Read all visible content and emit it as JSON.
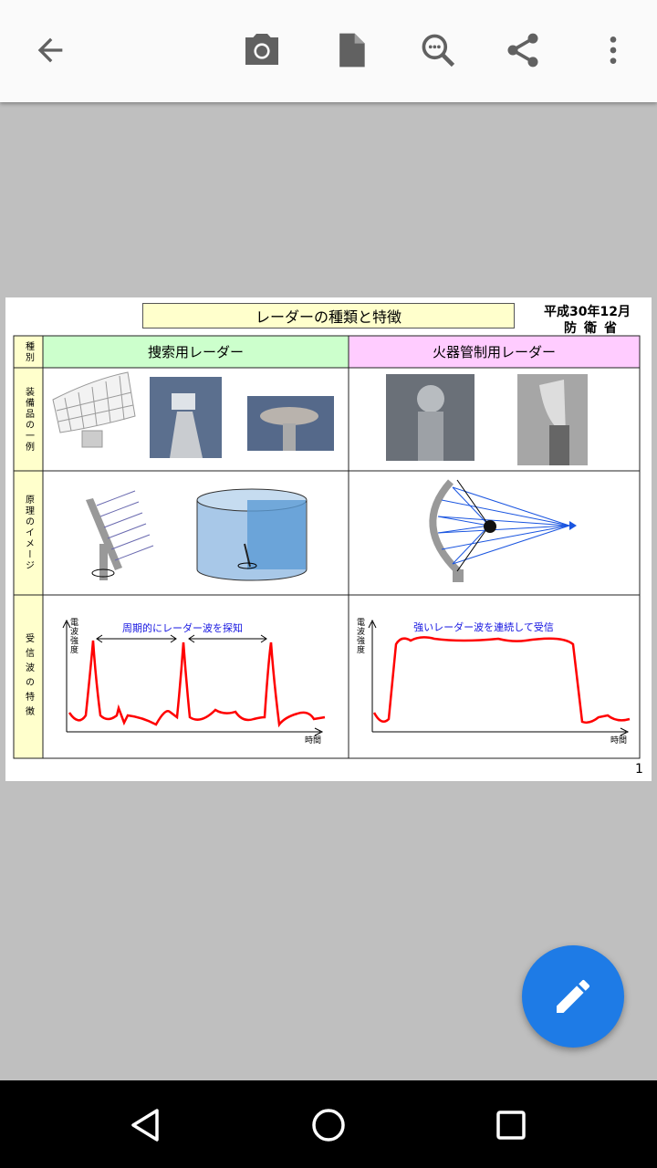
{
  "toolbar": {
    "icons": [
      "back-arrow-icon",
      "camera-icon",
      "document-icon",
      "zoom-icon",
      "share-icon",
      "more-vert-icon"
    ]
  },
  "document": {
    "title": "レーダーの種類と特徴",
    "date": "平成30年12月",
    "organization": "防衛省",
    "page_number": "1",
    "table": {
      "row_labels": [
        "種別",
        "装備品の一例",
        "原理のイメージ",
        "受信波の特徴"
      ],
      "columns": [
        {
          "header": "捜索用レーダー",
          "color": "#ccffcc",
          "wave_caption": "周期的にレーダー波を探知"
        },
        {
          "header": "火器管制用レーダー",
          "color": "#ffccff",
          "wave_caption": "強いレーダー波を連続して受信"
        }
      ],
      "y_axis_label": "電波強度",
      "x_axis_label": "時間"
    }
  },
  "colors": {
    "fab": "#1e7be6",
    "wave": "#ff0000",
    "caption": "#1515e0",
    "label_column": "#ffffcc"
  },
  "fab": {
    "icon": "pencil-icon"
  },
  "navbar": {
    "icons": [
      "back-triangle-icon",
      "home-circle-icon",
      "recents-square-icon"
    ]
  }
}
